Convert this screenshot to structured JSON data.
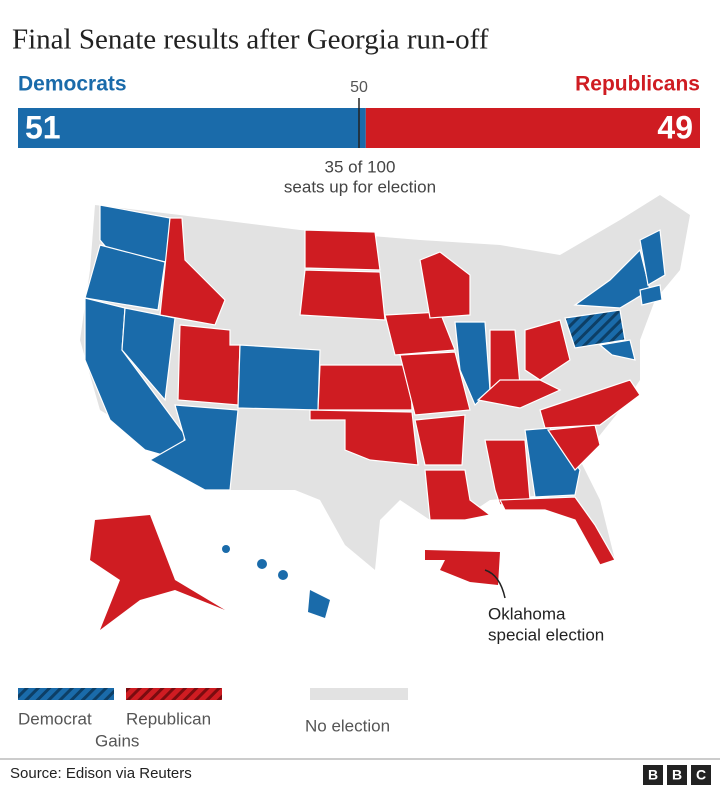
{
  "title": "Final Senate results after Georgia run-off",
  "seats": {
    "democrats": {
      "label": "Democrats",
      "value": 51
    },
    "republicans": {
      "label": "Republicans",
      "value": 49
    },
    "majority": 50,
    "note": [
      "35 of 100",
      "seats up for election"
    ]
  },
  "annotation": [
    "Oklahoma",
    "special election"
  ],
  "legend": {
    "democrat": "Democrat",
    "republican": "Republican",
    "gains": "Gains",
    "no_election": "No election"
  },
  "source": "Source: Edison via Reuters",
  "logo": [
    "B",
    "B",
    "C"
  ]
}
